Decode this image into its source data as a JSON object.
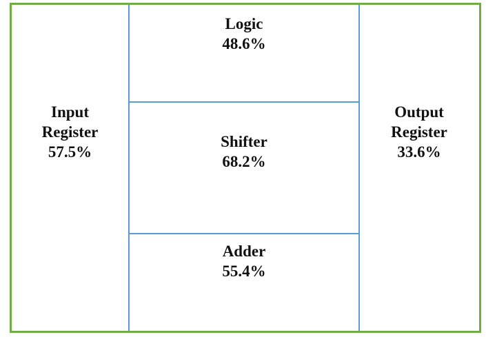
{
  "blocks": [
    {
      "lines": [
        "Input",
        "Register",
        "57.5%"
      ]
    },
    {
      "lines": [
        "Logic",
        "48.6%"
      ]
    },
    {
      "lines": [
        "Shifter",
        "68.2%"
      ]
    },
    {
      "lines": [
        "Adder",
        "55.4%"
      ]
    },
    {
      "lines": [
        "Output",
        "Register",
        "33.6%"
      ]
    }
  ]
}
